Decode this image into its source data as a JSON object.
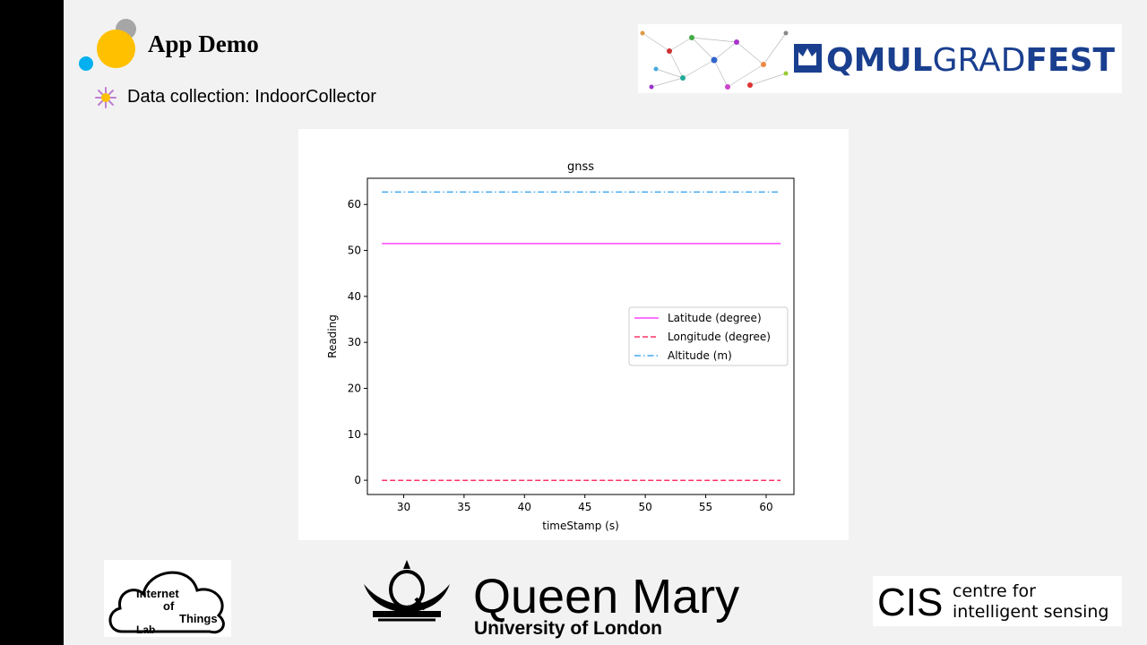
{
  "slide": {
    "title": "App Demo",
    "bullet": "Data collection: IndoorCollector"
  },
  "logos": {
    "gradfest": {
      "part1": "QMUL",
      "part2": "GRAD",
      "part3": "FEST"
    },
    "iot": {
      "line1": "Internet",
      "line2": "of",
      "line3": "Things",
      "line4": "Lab"
    },
    "qm": {
      "name": "Queen Mary",
      "sub": "University of London"
    },
    "cis": {
      "abbr": "CIS",
      "line1": "centre for",
      "line2": "intelligent sensing"
    }
  },
  "colors": {
    "latitude": "#ff44ff",
    "longitude": "#ff3366",
    "altitude": "#44a8f0",
    "gradfest_blue": "#1a3f8f",
    "bubble_gold": "#ffc000",
    "bubble_blue": "#00b0f0",
    "bubble_gray": "#a6a6a6"
  },
  "chart_data": {
    "type": "line",
    "title": "gnss",
    "xlabel": "timeStamp (s)",
    "ylabel": "Reading",
    "xlim": [
      27.0,
      62.3
    ],
    "ylim": [
      -3.1,
      65.7
    ],
    "xticks": [
      30,
      35,
      40,
      45,
      50,
      55,
      60
    ],
    "yticks": [
      0,
      10,
      20,
      30,
      40,
      50,
      60
    ],
    "x": [
      28.2,
      61.2
    ],
    "series": [
      {
        "name": "Latitude (degree)",
        "values": [
          51.5,
          51.5
        ],
        "style": "solid",
        "color": "#ff44ff"
      },
      {
        "name": "Longitude (degree)",
        "values": [
          -0.04,
          -0.04
        ],
        "style": "dashed",
        "color": "#ff3366"
      },
      {
        "name": "Altitude (m)",
        "values": [
          62.7,
          62.7
        ],
        "style": "dashdot",
        "color": "#44a8f0"
      }
    ],
    "legend": "center-right",
    "grid": false
  }
}
